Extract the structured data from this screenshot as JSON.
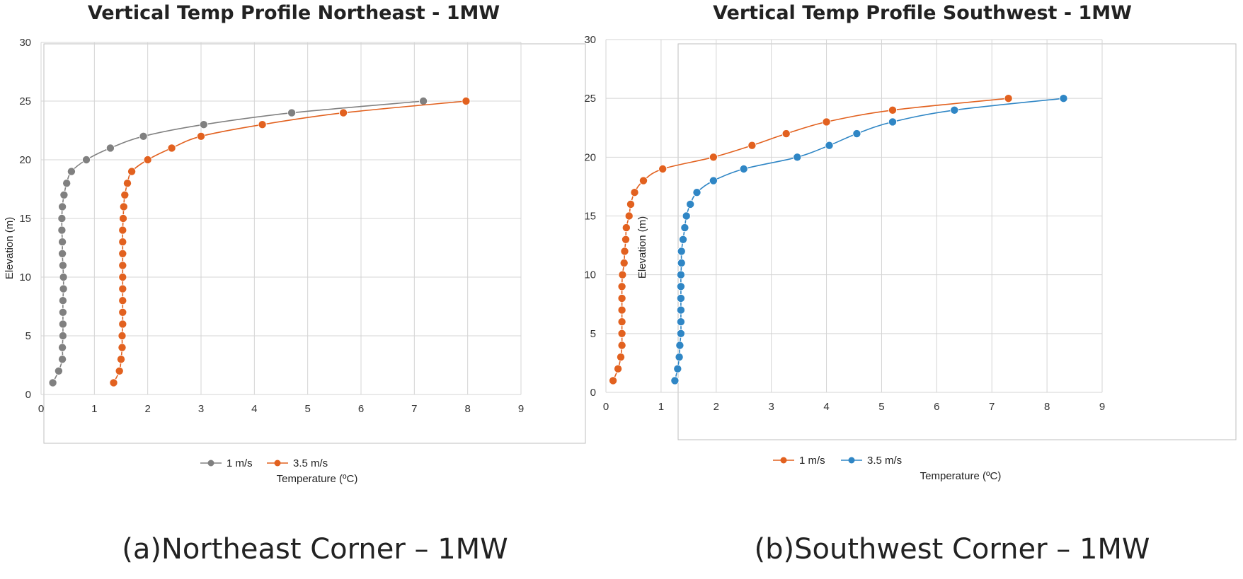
{
  "chart_data": [
    {
      "type": "line",
      "title": "Vertical Temp Profile Northeast - 1MW",
      "xlabel": "Temperature (ºC)",
      "ylabel": "Elevation (m)",
      "xlim": [
        0,
        9
      ],
      "ylim": [
        0,
        30
      ],
      "xticks": [
        "0",
        "1",
        "2",
        "3",
        "4",
        "5",
        "6",
        "7",
        "8",
        "9"
      ],
      "yticks": [
        "0",
        "5",
        "10",
        "15",
        "20",
        "25",
        "30"
      ],
      "grid": true,
      "legend_position": "bottom",
      "caption": "(a)Northeast Corner – 1MW",
      "series": [
        {
          "name": "1 m/s",
          "color": "#808080",
          "points": [
            [
              0.22,
              1
            ],
            [
              0.33,
              2
            ],
            [
              0.4,
              3
            ],
            [
              0.4,
              4
            ],
            [
              0.41,
              5
            ],
            [
              0.41,
              6
            ],
            [
              0.41,
              7
            ],
            [
              0.41,
              8
            ],
            [
              0.42,
              9
            ],
            [
              0.42,
              10
            ],
            [
              0.41,
              11
            ],
            [
              0.4,
              12
            ],
            [
              0.4,
              13
            ],
            [
              0.39,
              14
            ],
            [
              0.39,
              15
            ],
            [
              0.4,
              16
            ],
            [
              0.43,
              17
            ],
            [
              0.48,
              18
            ],
            [
              0.57,
              19
            ],
            [
              0.85,
              20
            ],
            [
              1.3,
              21
            ],
            [
              1.92,
              22
            ],
            [
              3.05,
              23
            ],
            [
              4.7,
              24
            ],
            [
              7.17,
              25
            ]
          ]
        },
        {
          "name": "3.5 m/s",
          "color": "#E2611F",
          "points": [
            [
              1.36,
              1
            ],
            [
              1.47,
              2
            ],
            [
              1.5,
              3
            ],
            [
              1.52,
              4
            ],
            [
              1.52,
              5
            ],
            [
              1.53,
              6
            ],
            [
              1.53,
              7
            ],
            [
              1.53,
              8
            ],
            [
              1.53,
              9
            ],
            [
              1.53,
              10
            ],
            [
              1.53,
              11
            ],
            [
              1.53,
              12
            ],
            [
              1.53,
              13
            ],
            [
              1.53,
              14
            ],
            [
              1.54,
              15
            ],
            [
              1.55,
              16
            ],
            [
              1.57,
              17
            ],
            [
              1.62,
              18
            ],
            [
              1.7,
              19
            ],
            [
              2.0,
              20
            ],
            [
              2.45,
              21
            ],
            [
              3.0,
              22
            ],
            [
              4.15,
              23
            ],
            [
              5.67,
              24
            ],
            [
              7.97,
              25
            ]
          ]
        }
      ]
    },
    {
      "type": "line",
      "title": "Vertical Temp Profile Southwest - 1MW",
      "xlabel": "Temperature (ºC)",
      "ylabel": "Elevation (m)",
      "xlim": [
        0,
        9
      ],
      "ylim": [
        0,
        30
      ],
      "xticks": [
        "0",
        "1",
        "2",
        "3",
        "4",
        "5",
        "6",
        "7",
        "8",
        "9"
      ],
      "yticks": [
        "0",
        "5",
        "10",
        "15",
        "20",
        "25",
        "30"
      ],
      "grid": true,
      "legend_position": "bottom",
      "caption": "(b)Southwest Corner – 1MW",
      "series": [
        {
          "name": "1 m/s",
          "color": "#E2611F",
          "points": [
            [
              0.13,
              1
            ],
            [
              0.22,
              2
            ],
            [
              0.27,
              3
            ],
            [
              0.29,
              4
            ],
            [
              0.29,
              5
            ],
            [
              0.29,
              6
            ],
            [
              0.29,
              7
            ],
            [
              0.29,
              8
            ],
            [
              0.29,
              9
            ],
            [
              0.3,
              10
            ],
            [
              0.33,
              11
            ],
            [
              0.34,
              12
            ],
            [
              0.36,
              13
            ],
            [
              0.37,
              14
            ],
            [
              0.42,
              15
            ],
            [
              0.45,
              16
            ],
            [
              0.52,
              17
            ],
            [
              0.68,
              18
            ],
            [
              1.03,
              19
            ],
            [
              1.95,
              20
            ],
            [
              2.65,
              21
            ],
            [
              3.27,
              22
            ],
            [
              4.0,
              23
            ],
            [
              5.2,
              24
            ],
            [
              7.3,
              25
            ]
          ]
        },
        {
          "name": "3.5 m/s",
          "color": "#2F86C5",
          "points": [
            [
              1.25,
              1
            ],
            [
              1.3,
              2
            ],
            [
              1.33,
              3
            ],
            [
              1.34,
              4
            ],
            [
              1.36,
              5
            ],
            [
              1.36,
              6
            ],
            [
              1.36,
              7
            ],
            [
              1.36,
              8
            ],
            [
              1.36,
              9
            ],
            [
              1.36,
              10
            ],
            [
              1.37,
              11
            ],
            [
              1.37,
              12
            ],
            [
              1.4,
              13
            ],
            [
              1.43,
              14
            ],
            [
              1.46,
              15
            ],
            [
              1.53,
              16
            ],
            [
              1.65,
              17
            ],
            [
              1.95,
              18
            ],
            [
              2.5,
              19
            ],
            [
              3.47,
              20
            ],
            [
              4.05,
              21
            ],
            [
              4.55,
              22
            ],
            [
              5.2,
              23
            ],
            [
              6.32,
              24
            ],
            [
              8.3,
              25
            ]
          ]
        }
      ]
    }
  ]
}
